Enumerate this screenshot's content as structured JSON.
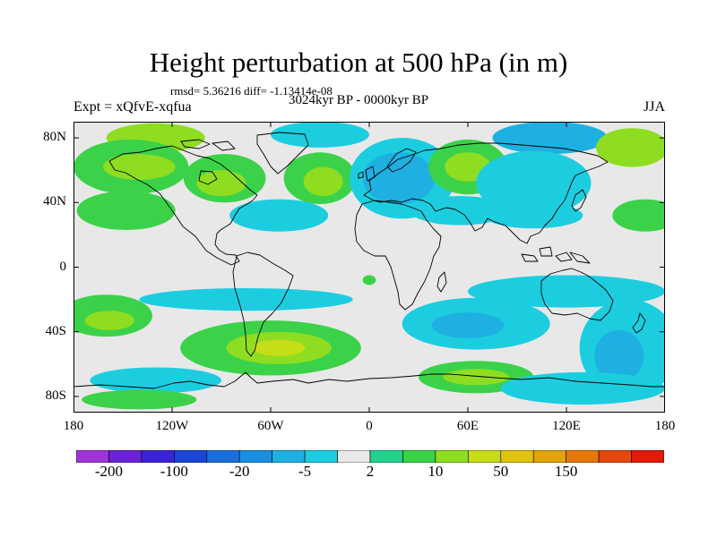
{
  "title": "Height perturbation at 500 hPa (in m)",
  "stats": "rmsd= 5.36216 diff= -1.13414e-08",
  "experiment": "Expt = xQfvE-xqfua",
  "period": "3024kyr BP - 0000kyr BP",
  "season": "JJA",
  "map": {
    "projection": "cylindrical-equidistant",
    "lon_range": [
      -180,
      180
    ],
    "lat_range": [
      -90,
      90
    ],
    "lat_ticks": [
      {
        "value": 80,
        "label": "80N"
      },
      {
        "value": 40,
        "label": "40N"
      },
      {
        "value": 0,
        "label": "0"
      },
      {
        "value": -40,
        "label": "40S"
      },
      {
        "value": -80,
        "label": "80S"
      }
    ],
    "lon_ticks": [
      {
        "value": -180,
        "label": "180"
      },
      {
        "value": -120,
        "label": "120W"
      },
      {
        "value": -60,
        "label": "60W"
      },
      {
        "value": 0,
        "label": "0"
      },
      {
        "value": 60,
        "label": "60E"
      },
      {
        "value": 120,
        "label": "120E"
      },
      {
        "value": 180,
        "label": "180"
      }
    ],
    "background_color": "#e8e8e8",
    "coastline_color": "#000000",
    "anomaly_regions": [
      {
        "lon": -130,
        "lat": 80,
        "rx": 30,
        "ry": 9,
        "level": 2
      },
      {
        "lon": -30,
        "lat": 82,
        "rx": 30,
        "ry": 8,
        "level": -1
      },
      {
        "lon": 110,
        "lat": 80,
        "rx": 35,
        "ry": 10,
        "level": -2
      },
      {
        "lon": 160,
        "lat": 74,
        "rx": 22,
        "ry": 12,
        "level": 2
      },
      {
        "lon": -145,
        "lat": 62,
        "rx": 35,
        "ry": 17,
        "level": 1
      },
      {
        "lon": -140,
        "lat": 62,
        "rx": 22,
        "ry": 8,
        "level": 2
      },
      {
        "lon": -88,
        "lat": 55,
        "rx": 25,
        "ry": 15,
        "level": 1
      },
      {
        "lon": -90,
        "lat": 52,
        "rx": 15,
        "ry": 8,
        "level": 2
      },
      {
        "lon": -30,
        "lat": 55,
        "rx": 22,
        "ry": 16,
        "level": 1
      },
      {
        "lon": -28,
        "lat": 53,
        "rx": 12,
        "ry": 9,
        "level": 2
      },
      {
        "lon": 20,
        "lat": 55,
        "rx": 32,
        "ry": 25,
        "level": -1
      },
      {
        "lon": 18,
        "lat": 55,
        "rx": 22,
        "ry": 16,
        "level": -2
      },
      {
        "lon": 60,
        "lat": 62,
        "rx": 24,
        "ry": 17,
        "level": 1
      },
      {
        "lon": 60,
        "lat": 62,
        "rx": 14,
        "ry": 9,
        "level": 2
      },
      {
        "lon": 100,
        "lat": 52,
        "rx": 35,
        "ry": 20,
        "level": -1
      },
      {
        "lon": -148,
        "lat": 35,
        "rx": 30,
        "ry": 12,
        "level": 1
      },
      {
        "lon": -55,
        "lat": 32,
        "rx": 30,
        "ry": 10,
        "level": -1
      },
      {
        "lon": 55,
        "lat": 35,
        "rx": 30,
        "ry": 9,
        "level": -1
      },
      {
        "lon": 100,
        "lat": 32,
        "rx": 30,
        "ry": 8,
        "level": -1
      },
      {
        "lon": 168,
        "lat": 32,
        "rx": 20,
        "ry": 10,
        "level": 1
      },
      {
        "lon": -75,
        "lat": -20,
        "rx": 65,
        "ry": 7,
        "level": -1
      },
      {
        "lon": 120,
        "lat": -15,
        "rx": 60,
        "ry": 10,
        "level": -1
      },
      {
        "lon": -160,
        "lat": -30,
        "rx": 28,
        "ry": 13,
        "level": 1
      },
      {
        "lon": -158,
        "lat": -33,
        "rx": 15,
        "ry": 6,
        "level": 2
      },
      {
        "lon": 65,
        "lat": -35,
        "rx": 45,
        "ry": 16,
        "level": -1
      },
      {
        "lon": 60,
        "lat": -36,
        "rx": 22,
        "ry": 8,
        "level": -2
      },
      {
        "lon": 158,
        "lat": -50,
        "rx": 30,
        "ry": 30,
        "level": -1
      },
      {
        "lon": 152,
        "lat": -55,
        "rx": 15,
        "ry": 16,
        "level": -2
      },
      {
        "lon": -60,
        "lat": -50,
        "rx": 55,
        "ry": 17,
        "level": 1
      },
      {
        "lon": -55,
        "lat": -50,
        "rx": 32,
        "ry": 10,
        "level": 2
      },
      {
        "lon": -55,
        "lat": -50,
        "rx": 16,
        "ry": 5,
        "level": 3
      },
      {
        "lon": 65,
        "lat": -68,
        "rx": 35,
        "ry": 10,
        "level": 1
      },
      {
        "lon": 65,
        "lat": -68,
        "rx": 20,
        "ry": 5,
        "level": 2
      },
      {
        "lon": -130,
        "lat": -70,
        "rx": 40,
        "ry": 8,
        "level": -1
      },
      {
        "lon": 130,
        "lat": -75,
        "rx": 50,
        "ry": 10,
        "level": -1
      },
      {
        "lon": -140,
        "lat": -82,
        "rx": 35,
        "ry": 6,
        "level": 1
      },
      {
        "lon": 0,
        "lat": -8,
        "rx": 4,
        "ry": 3,
        "level": 1
      }
    ]
  },
  "colorbar": {
    "colors": [
      "#9f34d6",
      "#6b22d6",
      "#3a24d6",
      "#1c45d6",
      "#1a6edb",
      "#1a8fe0",
      "#1fb0e2",
      "#1ccde0",
      "#e8e8e8",
      "#24d28e",
      "#3bd24a",
      "#8fdd20",
      "#c6dd18",
      "#e0c30f",
      "#e3a30c",
      "#e4780c",
      "#e4480c",
      "#e11a0c"
    ],
    "tick_labels": [
      {
        "boundary": 1,
        "label": "-200"
      },
      {
        "boundary": 3,
        "label": "-100"
      },
      {
        "boundary": 5,
        "label": "-20"
      },
      {
        "boundary": 7,
        "label": "-5"
      },
      {
        "boundary": 9,
        "label": "2"
      },
      {
        "boundary": 11,
        "label": "10"
      },
      {
        "boundary": 13,
        "label": "50"
      },
      {
        "boundary": 15,
        "label": "150"
      }
    ]
  }
}
